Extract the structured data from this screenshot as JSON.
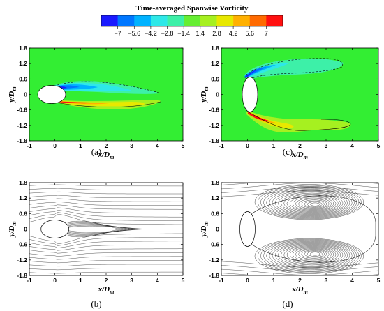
{
  "title": "Time-averaged Spanwise Vorticity",
  "colorbar": {
    "ticks": [
      "−7",
      "−5.6",
      "−4.2",
      "−2.8",
      "−1.4",
      "1.4",
      "2.8",
      "4.2",
      "5.6",
      "7"
    ],
    "colors": [
      "#1a1aff",
      "#0077ff",
      "#00b2ff",
      "#2ee8e8",
      "#3df0a8",
      "#66ee33",
      "#a6f020",
      "#e8e800",
      "#ffb000",
      "#ff6a00",
      "#ff1010"
    ],
    "accent_colors": {
      "negative": "#1a1aff",
      "positive": "#ff1010",
      "background": "#33ee33"
    }
  },
  "axes": {
    "xlabel": "x/D",
    "xlabel_sub": "m",
    "ylabel": "y/D",
    "ylabel_sub": "m",
    "xticks": [
      "-1",
      "0",
      "1",
      "2",
      "3",
      "4",
      "5"
    ],
    "yticks": [
      "1.8",
      "1.2",
      "0.6",
      "0",
      "-0.6",
      "-1.2",
      "-1.8"
    ],
    "xlim": [
      -1,
      5
    ],
    "ylim": [
      -1.8,
      1.8
    ]
  },
  "panels": [
    {
      "id": "a",
      "label": "(a)",
      "type": "vorticity-contour"
    },
    {
      "id": "b",
      "label": "(b)",
      "type": "streamlines"
    },
    {
      "id": "c",
      "label": "(c)",
      "type": "vorticity-contour"
    },
    {
      "id": "d",
      "label": "(d)",
      "type": "streamlines"
    }
  ]
}
